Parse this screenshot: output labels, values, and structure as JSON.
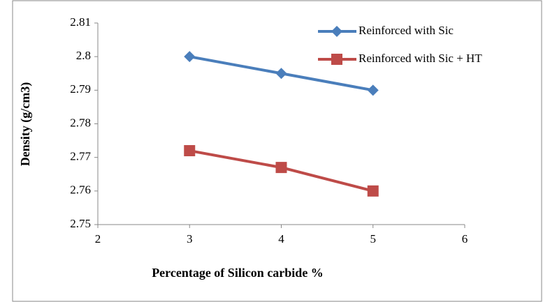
{
  "chart_data": {
    "type": "line",
    "x_label": "Percentage of Silicon carbide %",
    "y_label": "Density (g/cm3)",
    "xlim": [
      2,
      6
    ],
    "xticks": [
      2,
      3,
      4,
      5,
      6
    ],
    "ylim": [
      2.75,
      2.81
    ],
    "yticks": [
      2.75,
      2.76,
      2.77,
      2.78,
      2.79,
      2.8,
      2.81
    ],
    "grid": false,
    "legend": "upper right",
    "x": [
      3,
      4,
      5
    ],
    "series": [
      {
        "name": "Reinforced with Sic",
        "color": "#4a7ebb",
        "marker": "diamond",
        "values": [
          2.8,
          2.795,
          2.79
        ]
      },
      {
        "name": "Reinforced with Sic + HT",
        "color": "#be4b48",
        "marker": "square",
        "values": [
          2.772,
          2.767,
          2.76
        ]
      }
    ]
  }
}
